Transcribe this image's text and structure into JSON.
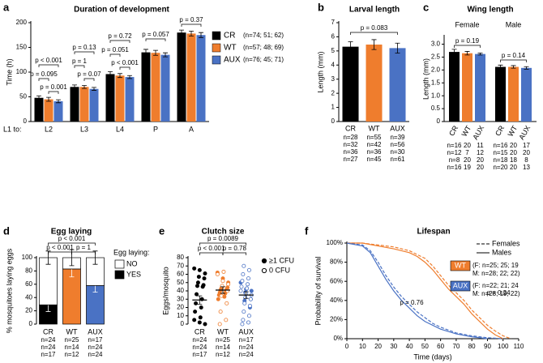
{
  "chart_data": [
    {
      "type": "bar",
      "label": "a",
      "title": "Duration of development",
      "y_label": "Time (h)",
      "x_prefix": "L1 to:",
      "categories": [
        "L2",
        "L3",
        "L4",
        "P",
        "A"
      ],
      "ylim": [
        0,
        200
      ],
      "yticks": [
        0,
        50,
        100,
        150,
        200
      ],
      "series": [
        {
          "name": "CR",
          "note": "(n=74; 51; 62)",
          "color": "#000000",
          "values": [
            48,
            70,
            96,
            140,
            180
          ],
          "errors": [
            4,
            4,
            5,
            6,
            5
          ]
        },
        {
          "name": "WT",
          "note": "(n=57; 48; 69)",
          "color": "#ef7d2d",
          "values": [
            45,
            70,
            93,
            139,
            178
          ],
          "errors": [
            4,
            3,
            4,
            5,
            5
          ]
        },
        {
          "name": "AUX",
          "note": "(n=76; 45; 71)",
          "color": "#4a72c4",
          "values": [
            41,
            66,
            90,
            135,
            175
          ],
          "errors": [
            3,
            3,
            3,
            4,
            5
          ]
        }
      ],
      "annotations": [
        "p < 0.001",
        "p = 0.095",
        "p = 0.001",
        "p = 0.13",
        "p = 1",
        "p = 0.07",
        "p = 0.72",
        "p = 0.051",
        "p < 0.001",
        "p = 0.057",
        "p = 0.37"
      ]
    },
    {
      "type": "bar",
      "label": "b",
      "title": "Larval length",
      "y_label": "Length (mm)",
      "categories": [
        "CR",
        "WT",
        "AUX"
      ],
      "values": [
        5.3,
        5.45,
        5.2
      ],
      "errors": [
        0.35,
        0.35,
        0.35
      ],
      "colors": [
        "#000000",
        "#ef7d2d",
        "#4a72c4"
      ],
      "ylim": [
        0,
        7
      ],
      "yticks": [
        0,
        1,
        2,
        3,
        4,
        5,
        6,
        7
      ],
      "n_labels": [
        [
          "n=28",
          "n=32",
          "n=36",
          "n=27"
        ],
        [
          "n=55",
          "n=42",
          "n=36",
          "n=45"
        ],
        [
          "n=39",
          "n=56",
          "n=30",
          "n=61"
        ]
      ],
      "annotations": [
        "p = 0.083"
      ]
    },
    {
      "type": "bar",
      "label": "c",
      "title": "Wing length",
      "y_label": "Length (mm)",
      "categories": [
        "Female",
        "Male"
      ],
      "ylim": [
        0,
        3.3
      ],
      "yticks": [
        0,
        0.5,
        {
          "value": 1,
          "label": "1.0"
        },
        1.5,
        {
          "value": 2,
          "label": "2.0"
        },
        2.5,
        {
          "value": 3,
          "label": "3.0"
        }
      ],
      "series": [
        {
          "name": "CR",
          "color": "#000000",
          "values": [
            2.7,
            2.12
          ],
          "errors": [
            0.1,
            0.07
          ],
          "n_labels": [
            [
              "n=16",
              "n=12",
              "n=8",
              "n=16"
            ],
            [
              "n=16",
              "n=15",
              "n=18",
              "n=20"
            ]
          ]
        },
        {
          "name": "WT",
          "color": "#ef7d2d",
          "values": [
            2.65,
            2.12
          ],
          "errors": [
            0.07,
            0.05
          ],
          "n_labels": [
            [
              "20",
              "7",
              "20",
              "19"
            ],
            [
              "20",
              "20",
              "18",
              "20"
            ]
          ]
        },
        {
          "name": "AUX",
          "color": "#4a72c4",
          "values": [
            2.62,
            2.08
          ],
          "errors": [
            0.04,
            0.05
          ],
          "n_labels": [
            [
              "11",
              "12",
              "20",
              "20"
            ],
            [
              "17",
              "20",
              "8",
              "13"
            ]
          ]
        }
      ],
      "annotations": [
        "p = 0.19",
        "p = 0.14"
      ]
    },
    {
      "type": "stacked_bar",
      "label": "d",
      "title": "Egg laying",
      "y_label": "% mosquitoes laying eggs",
      "categories": [
        "CR",
        "WT",
        "AUX"
      ],
      "category_colors": [
        "#000000",
        "#ef7d2d",
        "#4a72c4"
      ],
      "legend_title": "Egg laying:",
      "ylim": [
        0,
        100
      ],
      "yticks": [
        0,
        20,
        40,
        60,
        80,
        100
      ],
      "series": [
        {
          "name": "YES",
          "color": "#000000",
          "values": [
            29,
            83,
            58
          ],
          "errors": [
            10,
            12,
            10
          ]
        },
        {
          "name": "NO",
          "color": "#ffffff",
          "values": [
            71,
            17,
            42
          ],
          "errors": [
            10,
            12,
            10
          ]
        }
      ],
      "n_labels": [
        [
          "n=24",
          "n=24",
          "n=17"
        ],
        [
          "n=25",
          "n=14",
          "n=12"
        ],
        [
          "n=17",
          "n=24",
          "n=24"
        ]
      ],
      "annotations": [
        "p < 0.001",
        "p < 0.001",
        "p = 1"
      ]
    },
    {
      "type": "dot_plot",
      "label": "e",
      "title": "Clutch size",
      "y_label": "Eggs/mosquito",
      "ylim": [
        0,
        80
      ],
      "yticks": [
        0,
        10,
        20,
        30,
        40,
        50,
        60,
        70,
        80
      ],
      "series": [
        {
          "name": "≥1 CFU",
          "filled": true
        },
        {
          "name": "0 CFU",
          "filled": false
        }
      ],
      "groups": [
        {
          "name": "CR",
          "color": "#000000",
          "mean": 29,
          "sem": 5,
          "n_labels": [
            "n=24",
            "n=24",
            "n=17"
          ],
          "values": [
            [
              67,
              65,
              61,
              57,
              55,
              50,
              47,
              46,
              45,
              36,
              30,
              25,
              20,
              15,
              8,
              5,
              2,
              0
            ],
            []
          ]
        },
        {
          "name": "WT",
          "color": "#ef7d2d",
          "mean": 41,
          "sem": 4,
          "n_labels": [
            "n=25",
            "n=14",
            "n=12"
          ],
          "values": [
            [
              62,
              55,
              50,
              45,
              44,
              43,
              42,
              41,
              40,
              38,
              37,
              35,
              33,
              30
            ],
            [
              63,
              60,
              52,
              48,
              46,
              40,
              34,
              25,
              15,
              5,
              0
            ]
          ]
        },
        {
          "name": "AUX",
          "color": "#4a72c4",
          "mean": 35,
          "sem": 4,
          "n_labels": [
            "n=17",
            "n=24",
            "n=24"
          ],
          "values": [
            [
              50,
              42,
              40,
              38,
              30,
              28,
              20
            ],
            [
              70,
              65,
              60,
              55,
              52,
              48,
              45,
              43,
              40,
              37,
              35,
              32,
              30,
              25,
              22,
              15,
              10,
              5,
              2,
              0
            ]
          ]
        }
      ],
      "annotations": [
        "p = 0.0089",
        "p < 0.001",
        "p = 0.78"
      ]
    },
    {
      "type": "survival",
      "label": "f",
      "title": "Lifespan",
      "x_label": "Time (days)",
      "y_label": "Probability of survival",
      "xlim": [
        0,
        110
      ],
      "xticks": [
        0,
        10,
        20,
        30,
        40,
        50,
        60,
        70,
        80,
        90,
        100,
        110
      ],
      "ylim": [
        0,
        100
      ],
      "yticks": [
        {
          "value": 0,
          "label": "0%"
        },
        {
          "value": 20,
          "label": "20%"
        },
        {
          "value": 40,
          "label": "40%"
        },
        {
          "value": 60,
          "label": "60%"
        },
        {
          "value": 80,
          "label": "80%"
        },
        {
          "value": 100,
          "label": "100%"
        }
      ],
      "line_styles": [
        {
          "name": "Females",
          "dash": "4 2"
        },
        {
          "name": "Males",
          "dash": "none"
        }
      ],
      "groups": [
        {
          "name": "WT",
          "color": "#ef7d2d",
          "note": [
            "(F: n=25; 25; 19",
            "M: n=28; 22; 22)"
          ],
          "curves": [
            {
              "x": [
                0,
                10,
                20,
                30,
                40,
                45,
                50,
                55,
                60,
                65,
                70,
                75,
                80,
                85,
                90,
                95,
                100,
                105
              ],
              "y": [
                100,
                100,
                98,
                96,
                92,
                88,
                84,
                76,
                66,
                56,
                48,
                40,
                30,
                22,
                14,
                8,
                3,
                0
              ]
            },
            {
              "x": [
                0,
                10,
                20,
                30,
                40,
                45,
                50,
                55,
                60,
                65,
                70,
                75,
                80,
                85,
                90,
                95,
                100
              ],
              "y": [
                100,
                100,
                97,
                94,
                90,
                86,
                80,
                72,
                62,
                52,
                44,
                36,
                26,
                18,
                10,
                4,
                0
              ]
            }
          ]
        },
        {
          "name": "AUX",
          "color": "#4a72c4",
          "note": [
            "(F: n=22; 21; 24",
            "M: n=28; 19; 22)"
          ],
          "curves": [
            {
              "x": [
                0,
                10,
                15,
                20,
                25,
                30,
                35,
                40,
                45,
                50,
                55,
                60,
                70,
                80,
                90,
                100
              ],
              "y": [
                100,
                98,
                92,
                80,
                66,
                54,
                44,
                36,
                28,
                22,
                16,
                12,
                6,
                3,
                1,
                0
              ]
            },
            {
              "x": [
                0,
                10,
                15,
                20,
                25,
                30,
                35,
                40,
                45,
                50,
                60,
                70,
                80,
                90
              ],
              "y": [
                100,
                97,
                90,
                76,
                62,
                50,
                40,
                32,
                24,
                18,
                10,
                5,
                2,
                0
              ]
            }
          ]
        }
      ],
      "annotations": [
        "p = 0.24",
        "p = 0.76"
      ]
    }
  ]
}
